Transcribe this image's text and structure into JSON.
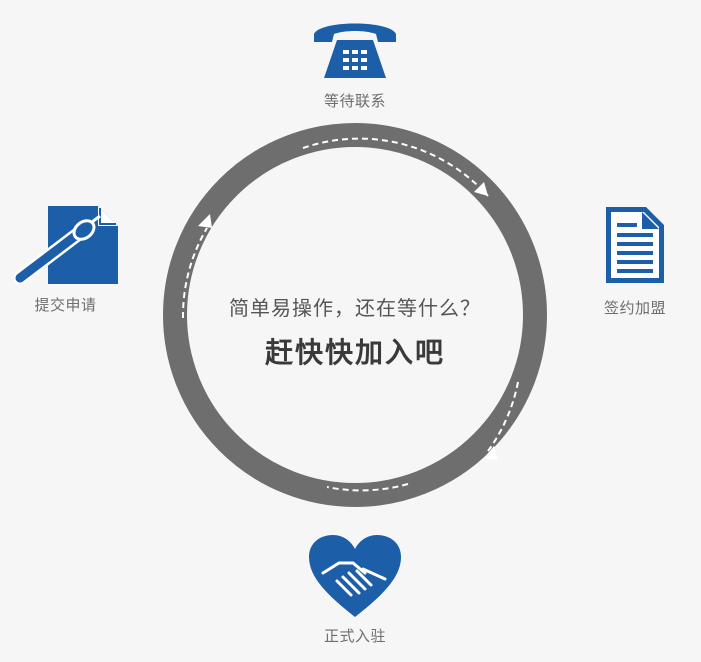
{
  "steps": [
    {
      "label": "等待联系",
      "icon": "telephone-icon"
    },
    {
      "label": "签约加盟",
      "icon": "document-icon"
    },
    {
      "label": "正式入驻",
      "icon": "handshake-heart-icon"
    },
    {
      "label": "提交申请",
      "icon": "pen-application-icon"
    }
  ],
  "center": {
    "line1": "简单易操作，还在等什么？",
    "line2": "赶快快加入吧"
  },
  "colors": {
    "ring": "#6f6e6f",
    "icon": "#1c5ea8",
    "background": "#f7f6f7"
  }
}
